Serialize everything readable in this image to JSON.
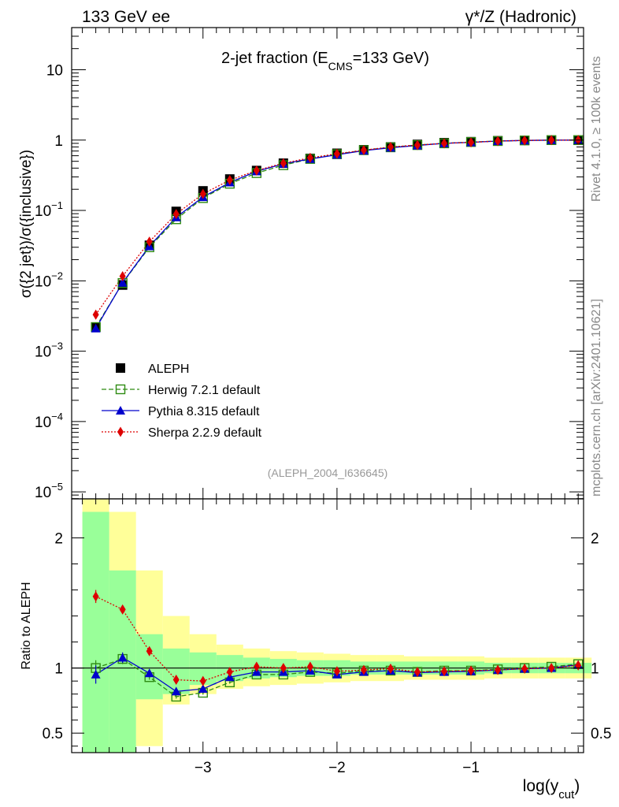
{
  "header": {
    "left": "133 GeV ee",
    "right": "γ*/Z (Hadronic)"
  },
  "side_labels": {
    "rivet": "Rivet 4.1.0, ≥ 100k events",
    "mcplots": "mcplots.cern.ch [arXiv:2401.10621]"
  },
  "chart_data": {
    "type": "line",
    "title_main": "2-jet fraction (E",
    "title_sub": "CMS",
    "title_tail": "=133 GeV)",
    "watermark": "(ALEPH_2004_I636645)",
    "ylabel": "σ({2 jet})/σ({inclusive})",
    "ratio_ylabel": "Ratio to ALEPH",
    "xlabel_main": "log(y",
    "xlabel_sub": "cut",
    "xlabel_tail": ")",
    "xlim": [
      -3.98,
      -0.16
    ],
    "ylim_log10": [
      -5.1,
      1.6
    ],
    "ratio_ylim": [
      0.35,
      2.3
    ],
    "x_ticks": [
      -3,
      -2,
      -1
    ],
    "x_tick_labels": [
      "−3",
      "−2",
      "−1"
    ],
    "y_ticks_log10": [
      -5,
      -4,
      -3,
      -2,
      -1,
      0,
      1
    ],
    "y_tick_labels": [
      {
        "base": "10",
        "exp": "−5"
      },
      {
        "base": "10",
        "exp": "−4"
      },
      {
        "base": "10",
        "exp": "−3"
      },
      {
        "base": "10",
        "exp": "−2"
      },
      {
        "base": "10",
        "exp": "−1"
      },
      {
        "base": "1",
        "exp": ""
      },
      {
        "base": "10",
        "exp": ""
      }
    ],
    "ratio_ticks": [
      0.5,
      1,
      2
    ],
    "ratio_tick_labels": [
      "0.5",
      "1",
      "2"
    ],
    "bin_edges": [
      -3.9,
      -3.7,
      -3.5,
      -3.3,
      -3.1,
      -2.9,
      -2.7,
      -2.5,
      -2.3,
      -2.1,
      -1.9,
      -1.7,
      -1.5,
      -1.3,
      -1.1,
      -0.9,
      -0.7,
      -0.5,
      -0.3,
      -0.1
    ],
    "x": [
      -3.8,
      -3.6,
      -3.4,
      -3.2,
      -3.0,
      -2.8,
      -2.6,
      -2.4,
      -2.2,
      -2.0,
      -1.8,
      -1.6,
      -1.4,
      -1.2,
      -1.0,
      -0.8,
      -0.6,
      -0.4,
      -0.2
    ],
    "band_outer": [
      [
        0.35,
        2.3
      ],
      [
        0.35,
        2.2
      ],
      [
        0.4,
        1.75
      ],
      [
        0.72,
        1.4
      ],
      [
        0.8,
        1.26
      ],
      [
        0.84,
        1.18
      ],
      [
        0.86,
        1.15
      ],
      [
        0.87,
        1.13
      ],
      [
        0.88,
        1.12
      ],
      [
        0.89,
        1.11
      ],
      [
        0.9,
        1.1
      ],
      [
        0.9,
        1.1
      ],
      [
        0.91,
        1.09
      ],
      [
        0.91,
        1.09
      ],
      [
        0.91,
        1.09
      ],
      [
        0.92,
        1.08
      ],
      [
        0.92,
        1.08
      ],
      [
        0.92,
        1.08
      ],
      [
        0.92,
        1.08
      ]
    ],
    "band_inner": [
      [
        0.35,
        2.2
      ],
      [
        0.35,
        1.75
      ],
      [
        0.76,
        1.26
      ],
      [
        0.8,
        1.15
      ],
      [
        0.87,
        1.12
      ],
      [
        0.9,
        1.1
      ],
      [
        0.92,
        1.08
      ],
      [
        0.93,
        1.07
      ],
      [
        0.94,
        1.06
      ],
      [
        0.94,
        1.06
      ],
      [
        0.95,
        1.05
      ],
      [
        0.95,
        1.05
      ],
      [
        0.95,
        1.05
      ],
      [
        0.95,
        1.05
      ],
      [
        0.95,
        1.05
      ],
      [
        0.96,
        1.04
      ],
      [
        0.96,
        1.04
      ],
      [
        0.96,
        1.04
      ],
      [
        0.96,
        1.04
      ]
    ],
    "series": [
      {
        "name": "ALEPH",
        "color": "#000000",
        "marker": "square",
        "line": "none",
        "values": [
          0.0022,
          0.0087,
          0.032,
          0.097,
          0.19,
          0.28,
          0.37,
          0.47,
          0.55,
          0.65,
          0.73,
          0.8,
          0.87,
          0.92,
          0.95,
          0.98,
          0.995,
          1.0,
          1.0
        ],
        "ratio": [
          1,
          1,
          1,
          1,
          1,
          1,
          1,
          1,
          1,
          1,
          1,
          1,
          1,
          1,
          1,
          1,
          1,
          1,
          1
        ]
      },
      {
        "name": "Herwig 7.2.1 default",
        "color": "#2e8b12",
        "marker": "open-square",
        "line": "dashed",
        "values": [
          0.0022,
          0.0093,
          0.03,
          0.075,
          0.15,
          0.24,
          0.34,
          0.44,
          0.54,
          0.63,
          0.72,
          0.79,
          0.85,
          0.9,
          0.94,
          0.97,
          0.99,
          1.0,
          1.0
        ],
        "ratio": [
          1.0,
          1.07,
          0.93,
          0.78,
          0.81,
          0.89,
          0.95,
          0.95,
          0.97,
          0.96,
          0.98,
          0.98,
          0.97,
          0.98,
          0.98,
          0.99,
          1.0,
          1.01,
          1.03
        ],
        "ratio_err": [
          0.06,
          0.04,
          0.02,
          0.015,
          0.015,
          0.01,
          0.01,
          0.01,
          0.01,
          0.01,
          0.01,
          0.01,
          0.01,
          0.01,
          0.01,
          0.01,
          0.01,
          0.01,
          0.01
        ]
      },
      {
        "name": "Pythia 8.315 default",
        "color": "#0000cc",
        "marker": "triangle",
        "line": "solid",
        "values": [
          0.0021,
          0.0094,
          0.031,
          0.08,
          0.155,
          0.25,
          0.36,
          0.46,
          0.54,
          0.62,
          0.71,
          0.78,
          0.84,
          0.9,
          0.93,
          0.97,
          0.99,
          1.0,
          1.0
        ],
        "ratio": [
          0.95,
          1.08,
          0.96,
          0.82,
          0.84,
          0.93,
          0.97,
          0.97,
          0.98,
          0.95,
          0.97,
          0.98,
          0.965,
          0.97,
          0.975,
          0.985,
          0.995,
          1.0,
          1.025
        ],
        "ratio_err": [
          0.07,
          0.04,
          0.02,
          0.015,
          0.015,
          0.01,
          0.01,
          0.01,
          0.01,
          0.01,
          0.01,
          0.01,
          0.01,
          0.01,
          0.01,
          0.01,
          0.01,
          0.01,
          0.01
        ]
      },
      {
        "name": "Sherpa 2.2.9 default",
        "color": "#dd0000",
        "marker": "diamond",
        "line": "dotted",
        "values": [
          0.0033,
          0.0116,
          0.036,
          0.089,
          0.172,
          0.27,
          0.37,
          0.47,
          0.56,
          0.64,
          0.72,
          0.8,
          0.85,
          0.9,
          0.93,
          0.97,
          0.99,
          1.0,
          1.0
        ],
        "ratio": [
          1.55,
          1.45,
          1.13,
          0.91,
          0.9,
          0.97,
          1.01,
          1.0,
          1.01,
          0.975,
          0.985,
          0.995,
          0.97,
          0.975,
          0.98,
          0.985,
          0.995,
          1.0,
          1.02
        ],
        "ratio_err": [
          0.05,
          0.03,
          0.015,
          0.01,
          0.01,
          0.01,
          0.01,
          0.01,
          0.01,
          0.01,
          0.01,
          0.01,
          0.01,
          0.01,
          0.01,
          0.01,
          0.01,
          0.01,
          0.01
        ]
      }
    ]
  }
}
